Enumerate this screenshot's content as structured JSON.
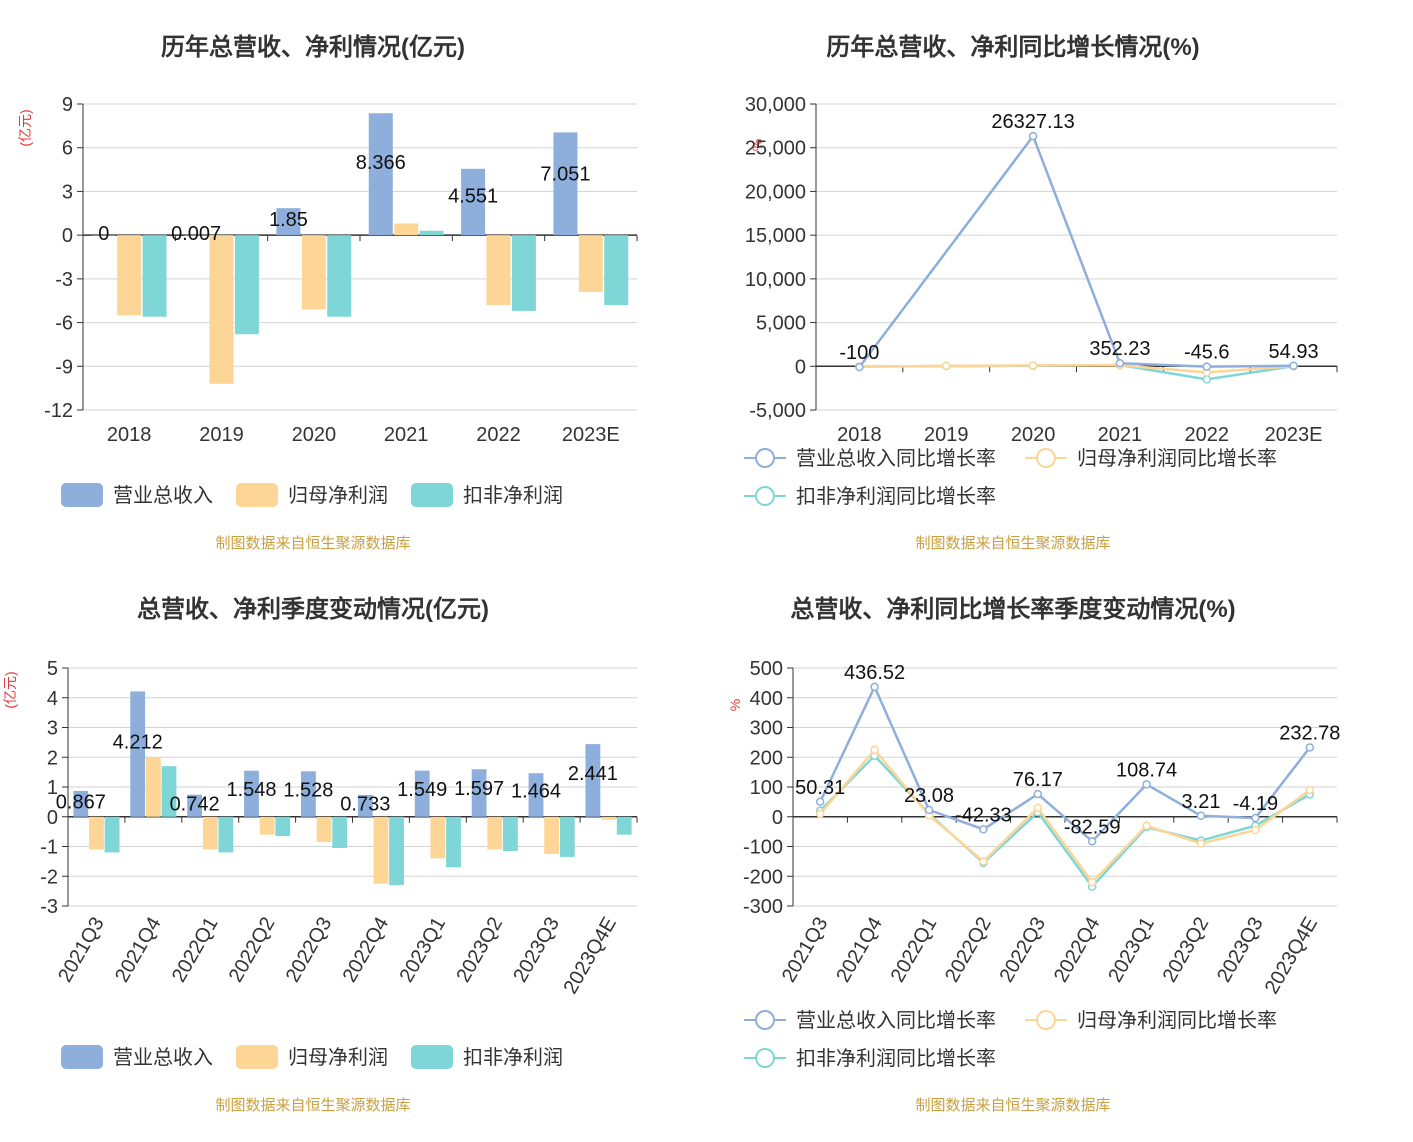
{
  "colors": {
    "revenue": "#8eaedb",
    "parent_profit": "#fdd597",
    "deducted_profit": "#7fd6d6",
    "grid": "#d3d3d3",
    "axis": "#333333",
    "title": "#333333",
    "unit": "#e03b3b",
    "source": "#c8a040"
  },
  "source_note": "制图数据来自恒生聚源数据库",
  "chart_data": [
    {
      "type": "bar",
      "title": "历年总营收、净利情况(亿元)",
      "unit": "(亿元)",
      "categories": [
        "2018",
        "2019",
        "2020",
        "2021",
        "2022",
        "2023E"
      ],
      "ylim": [
        -12,
        9
      ],
      "yticks": [
        9,
        6,
        3,
        0,
        -3,
        -6,
        -9,
        -12
      ],
      "yticklabels": [
        "9",
        "6",
        "3",
        "0",
        "-3",
        "-6",
        "-9",
        "-12"
      ],
      "series": [
        {
          "name": "营业总收入",
          "values": [
            0,
            0.007,
            1.85,
            8.366,
            4.551,
            7.051
          ],
          "labels": [
            "0",
            "0.007",
            "1.85",
            "8.366",
            "4.551",
            "7.051"
          ]
        },
        {
          "name": "归母净利润",
          "values": [
            -5.5,
            -10.2,
            -5.1,
            0.8,
            -4.8,
            -3.9
          ]
        },
        {
          "name": "扣非净利润",
          "values": [
            -5.6,
            -6.8,
            -5.6,
            0.3,
            -5.2,
            -4.8
          ]
        }
      ]
    },
    {
      "type": "line",
      "title": "历年总营收、净利同比增长情况(%)",
      "unit": "%",
      "categories": [
        "2018",
        "2019",
        "2020",
        "2021",
        "2022",
        "2023E"
      ],
      "ylim": [
        -5000,
        30000
      ],
      "yticks": [
        30000,
        25000,
        20000,
        15000,
        10000,
        5000,
        0,
        -5000
      ],
      "yticklabels": [
        "30,000",
        "25,000",
        "20,000",
        "15,000",
        "10,000",
        "5,000",
        "0",
        "-5,000"
      ],
      "series": [
        {
          "name": "营业总收入同比增长率",
          "values": [
            -100,
            null,
            26327.13,
            352.23,
            -45.6,
            54.93
          ],
          "labels": [
            "-100",
            "",
            "26327.13",
            "352.23",
            "-45.6",
            "54.93"
          ]
        },
        {
          "name": "归母净利润同比增长率",
          "values": [
            -50,
            50,
            100,
            120,
            -700,
            20
          ]
        },
        {
          "name": "扣非净利润同比增长率",
          "values": [
            -30,
            20,
            50,
            150,
            -1500,
            10
          ]
        }
      ]
    },
    {
      "type": "bar",
      "title": "总营收、净利季度变动情况(亿元)",
      "unit": "(亿元)",
      "categories": [
        "2021Q3",
        "2021Q4",
        "2022Q1",
        "2022Q2",
        "2022Q3",
        "2022Q4",
        "2023Q1",
        "2023Q2",
        "2023Q3",
        "2023Q4E"
      ],
      "ylim": [
        -3,
        5
      ],
      "yticks": [
        5,
        4,
        3,
        2,
        1,
        0,
        -1,
        -2,
        -3
      ],
      "yticklabels": [
        "5",
        "4",
        "3",
        "2",
        "1",
        "0",
        "-1",
        "-2",
        "-3"
      ],
      "series": [
        {
          "name": "营业总收入",
          "values": [
            0.867,
            4.212,
            0.742,
            1.548,
            1.528,
            0.733,
            1.549,
            1.597,
            1.464,
            2.441
          ],
          "labels": [
            "0.867",
            "4.212",
            "0.742",
            "1.548",
            "1.528",
            "0.733",
            "1.549",
            "1.597",
            "1.464",
            "2.441"
          ]
        },
        {
          "name": "归母净利润",
          "values": [
            -1.1,
            2.0,
            -1.1,
            -0.6,
            -0.85,
            -2.25,
            -1.4,
            -1.1,
            -1.25,
            -0.1
          ]
        },
        {
          "name": "扣非净利润",
          "values": [
            -1.2,
            1.7,
            -1.2,
            -0.65,
            -1.05,
            -2.3,
            -1.7,
            -1.15,
            -1.35,
            -0.6
          ]
        }
      ]
    },
    {
      "type": "line",
      "title": "总营收、净利同比增长率季度变动情况(%)",
      "unit": "%",
      "categories": [
        "2021Q3",
        "2021Q4",
        "2022Q1",
        "2022Q2",
        "2022Q3",
        "2022Q4",
        "2023Q1",
        "2023Q2",
        "2023Q3",
        "2023Q4E"
      ],
      "ylim": [
        -300,
        500
      ],
      "yticks": [
        500,
        400,
        300,
        200,
        100,
        0,
        -100,
        -200,
        -300
      ],
      "yticklabels": [
        "500",
        "400",
        "300",
        "200",
        "100",
        "0",
        "-100",
        "-200",
        "-300"
      ],
      "series": [
        {
          "name": "营业总收入同比增长率",
          "values": [
            50.31,
            436.52,
            23.08,
            -42.33,
            76.17,
            -82.59,
            108.74,
            3.21,
            -4.19,
            232.78
          ],
          "labels": [
            "50.31",
            "436.52",
            "23.08",
            "-42.33",
            "76.17",
            "-82.59",
            "108.74",
            "3.21",
            "-4.19",
            "232.78"
          ]
        },
        {
          "name": "归母净利润同比增长率",
          "values": [
            10,
            225,
            5,
            -150,
            30,
            -220,
            -30,
            -90,
            -45,
            90
          ]
        },
        {
          "name": "扣非净利润同比增长率",
          "values": [
            20,
            205,
            10,
            -155,
            15,
            -235,
            -35,
            -80,
            -30,
            75
          ]
        }
      ]
    }
  ]
}
